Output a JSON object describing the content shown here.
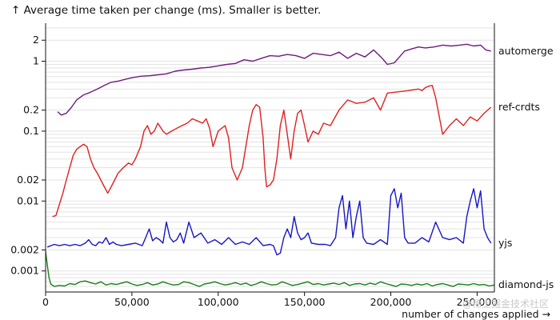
{
  "chart_data": {
    "type": "line",
    "title": "↑ Average time taken per change (ms). Smaller is better.",
    "xlabel": "number of changes applied →",
    "ylabel": "",
    "y_scale": "log",
    "xlim": [
      0,
      260000
    ],
    "ylim": [
      0.0005,
      3.5
    ],
    "grid": true,
    "legend": "inline-right",
    "x_ticks": [
      0,
      50000,
      100000,
      150000,
      200000,
      250000
    ],
    "x_tick_labels": [
      "0",
      "50,000",
      "100,000",
      "150,000",
      "200,000",
      "250,000"
    ],
    "y_ticks": [
      0.001,
      0.002,
      0.01,
      0.02,
      0.1,
      0.2,
      1,
      2
    ],
    "y_tick_labels": [
      "0.001",
      "0.002",
      "0.01",
      "0.02",
      "0.1",
      "0.2",
      "1",
      "2"
    ],
    "series": [
      {
        "name": "automerge",
        "color": "#6e1a7e",
        "x": [
          7000,
          9000,
          12000,
          15000,
          18000,
          22000,
          26000,
          30000,
          34000,
          38000,
          42000,
          46000,
          50000,
          55000,
          60000,
          65000,
          70000,
          75000,
          80000,
          85000,
          90000,
          95000,
          100000,
          105000,
          110000,
          115000,
          120000,
          125000,
          130000,
          135000,
          140000,
          145000,
          150000,
          155000,
          160000,
          165000,
          170000,
          175000,
          180000,
          185000,
          190000,
          195000,
          198000,
          202000,
          205000,
          208000,
          212000,
          216000,
          220000,
          225000,
          230000,
          235000,
          240000,
          244000,
          248000,
          252000,
          255000,
          258000
        ],
        "values": [
          0.19,
          0.17,
          0.18,
          0.22,
          0.28,
          0.33,
          0.36,
          0.4,
          0.45,
          0.5,
          0.52,
          0.55,
          0.58,
          0.61,
          0.62,
          0.64,
          0.66,
          0.72,
          0.75,
          0.77,
          0.8,
          0.82,
          0.86,
          0.9,
          0.93,
          1.05,
          1.0,
          1.1,
          1.2,
          1.18,
          1.25,
          1.2,
          1.1,
          1.3,
          1.25,
          1.2,
          1.35,
          1.1,
          1.3,
          1.15,
          1.45,
          1.1,
          0.9,
          0.95,
          1.15,
          1.4,
          1.5,
          1.6,
          1.55,
          1.6,
          1.7,
          1.65,
          1.7,
          1.75,
          1.65,
          1.7,
          1.45,
          1.4
        ]
      },
      {
        "name": "ref-crdts",
        "color": "#e02020",
        "x": [
          4000,
          6000,
          8000,
          10000,
          12000,
          14000,
          16000,
          18000,
          20000,
          22000,
          24000,
          26000,
          28000,
          30000,
          32000,
          34000,
          36000,
          38000,
          40000,
          42000,
          45000,
          48000,
          50000,
          52000,
          55000,
          57000,
          59000,
          61000,
          63000,
          65000,
          68000,
          70000,
          73000,
          76000,
          79000,
          82000,
          85000,
          88000,
          91000,
          93000,
          95000,
          97000,
          100000,
          102000,
          104000,
          106000,
          108000,
          111000,
          114000,
          116000,
          118000,
          120000,
          122000,
          124000,
          126000,
          127000,
          128000,
          130000,
          132000,
          134000,
          136000,
          138000,
          140000,
          142000,
          144000,
          146000,
          148000,
          150000,
          152000,
          155000,
          158000,
          161000,
          165000,
          170000,
          175000,
          180000,
          185000,
          190000,
          194000,
          198000,
          202000,
          206000,
          210000,
          213000,
          216000,
          218000,
          220000,
          222000,
          224000,
          226000,
          230000,
          234000,
          238000,
          242000,
          246000,
          250000,
          254000,
          258000
        ],
        "values": [
          0.006,
          0.0062,
          0.009,
          0.013,
          0.02,
          0.03,
          0.045,
          0.055,
          0.06,
          0.065,
          0.06,
          0.04,
          0.03,
          0.025,
          0.02,
          0.016,
          0.013,
          0.016,
          0.02,
          0.025,
          0.03,
          0.035,
          0.033,
          0.04,
          0.06,
          0.1,
          0.12,
          0.09,
          0.1,
          0.13,
          0.1,
          0.09,
          0.1,
          0.11,
          0.12,
          0.13,
          0.15,
          0.14,
          0.13,
          0.15,
          0.11,
          0.06,
          0.1,
          0.11,
          0.12,
          0.08,
          0.03,
          0.02,
          0.03,
          0.06,
          0.12,
          0.2,
          0.24,
          0.22,
          0.08,
          0.03,
          0.016,
          0.017,
          0.02,
          0.04,
          0.12,
          0.2,
          0.09,
          0.04,
          0.1,
          0.18,
          0.2,
          0.12,
          0.07,
          0.1,
          0.09,
          0.13,
          0.12,
          0.2,
          0.28,
          0.25,
          0.26,
          0.3,
          0.2,
          0.35,
          0.36,
          0.37,
          0.38,
          0.39,
          0.4,
          0.38,
          0.42,
          0.44,
          0.45,
          0.3,
          0.09,
          0.12,
          0.15,
          0.12,
          0.16,
          0.14,
          0.18,
          0.22
        ]
      },
      {
        "name": "yjs",
        "color": "#1717c4",
        "x": [
          1000,
          3000,
          5000,
          8000,
          11000,
          14000,
          17000,
          20000,
          23000,
          25000,
          27000,
          29000,
          31000,
          33000,
          35000,
          37000,
          39000,
          41000,
          44000,
          48000,
          52000,
          56000,
          58000,
          60000,
          62000,
          64000,
          66000,
          68000,
          70000,
          72000,
          74000,
          76000,
          78000,
          80000,
          83000,
          86000,
          90000,
          94000,
          98000,
          102000,
          106000,
          110000,
          114000,
          118000,
          122000,
          126000,
          130000,
          132000,
          134000,
          136000,
          138000,
          140000,
          142000,
          144000,
          146000,
          148000,
          150000,
          152000,
          154000,
          158000,
          162000,
          165000,
          168000,
          170000,
          172000,
          174000,
          176000,
          178000,
          180000,
          182000,
          184000,
          186000,
          190000,
          194000,
          198000,
          200000,
          202000,
          204000,
          206000,
          208000,
          210000,
          214000,
          218000,
          222000,
          226000,
          230000,
          234000,
          238000,
          242000,
          244000,
          246000,
          248000,
          250000,
          252000,
          254000,
          256000,
          258000
        ],
        "values": [
          0.0022,
          0.0023,
          0.0024,
          0.0023,
          0.0024,
          0.0023,
          0.0024,
          0.0023,
          0.0025,
          0.0028,
          0.0024,
          0.0023,
          0.0026,
          0.0025,
          0.003,
          0.0024,
          0.0026,
          0.0024,
          0.0023,
          0.0024,
          0.0025,
          0.0023,
          0.003,
          0.004,
          0.0027,
          0.003,
          0.0028,
          0.0025,
          0.005,
          0.003,
          0.0026,
          0.0028,
          0.0035,
          0.0025,
          0.005,
          0.003,
          0.0035,
          0.0025,
          0.0028,
          0.0024,
          0.003,
          0.0024,
          0.0026,
          0.0024,
          0.003,
          0.0023,
          0.0024,
          0.0023,
          0.0017,
          0.0018,
          0.003,
          0.004,
          0.003,
          0.006,
          0.0035,
          0.0028,
          0.003,
          0.0035,
          0.0025,
          0.0024,
          0.0024,
          0.0023,
          0.003,
          0.008,
          0.012,
          0.004,
          0.01,
          0.003,
          0.006,
          0.01,
          0.003,
          0.0025,
          0.0024,
          0.0028,
          0.0024,
          0.012,
          0.015,
          0.008,
          0.013,
          0.003,
          0.0025,
          0.0025,
          0.003,
          0.0026,
          0.005,
          0.003,
          0.0028,
          0.003,
          0.0025,
          0.006,
          0.01,
          0.015,
          0.008,
          0.014,
          0.004,
          0.003,
          0.0025
        ]
      },
      {
        "name": "diamond-js",
        "color": "#1a7d1a",
        "x": [
          0,
          1000,
          2000,
          3000,
          5000,
          8000,
          11000,
          14000,
          17000,
          20000,
          23000,
          26000,
          29000,
          32000,
          35000,
          38000,
          41000,
          44000,
          47000,
          50000,
          53000,
          56000,
          59000,
          62000,
          65000,
          68000,
          71000,
          74000,
          77000,
          80000,
          83000,
          86000,
          89000,
          92000,
          95000,
          98000,
          101000,
          104000,
          107000,
          110000,
          113000,
          116000,
          119000,
          122000,
          125000,
          128000,
          131000,
          134000,
          137000,
          140000,
          143000,
          146000,
          149000,
          152000,
          155000,
          158000,
          161000,
          164000,
          167000,
          170000,
          173000,
          176000,
          179000,
          182000,
          185000,
          188000,
          191000,
          194000,
          197000,
          200000,
          203000,
          206000,
          209000,
          212000,
          215000,
          218000,
          221000,
          224000,
          227000,
          230000,
          233000,
          236000,
          239000,
          242000,
          245000,
          248000,
          251000,
          254000,
          257000,
          260000
        ],
        "values": [
          0.0019,
          0.0012,
          0.0008,
          0.00065,
          0.0006,
          0.00062,
          0.00061,
          0.00066,
          0.00064,
          0.0007,
          0.00072,
          0.00068,
          0.00065,
          0.0007,
          0.00063,
          0.00066,
          0.00064,
          0.00067,
          0.0007,
          0.00065,
          0.00062,
          0.00064,
          0.00068,
          0.00063,
          0.00065,
          0.0007,
          0.00066,
          0.00063,
          0.00064,
          0.0007,
          0.00068,
          0.00064,
          0.0006,
          0.00065,
          0.00067,
          0.0007,
          0.00066,
          0.00063,
          0.00065,
          0.00068,
          0.00064,
          0.00067,
          0.00062,
          0.00065,
          0.0007,
          0.00066,
          0.00063,
          0.00064,
          0.0007,
          0.00066,
          0.00062,
          0.00064,
          0.00067,
          0.0007,
          0.00064,
          0.00066,
          0.00063,
          0.00065,
          0.00067,
          0.00064,
          0.00068,
          0.00062,
          0.00065,
          0.00066,
          0.00063,
          0.00067,
          0.00064,
          0.0007,
          0.00066,
          0.00063,
          0.0006,
          0.00065,
          0.00064,
          0.00062,
          0.00065,
          0.00063,
          0.00066,
          0.00061,
          0.00064,
          0.00066,
          0.00063,
          0.0006,
          0.00065,
          0.00064,
          0.00063,
          0.00066,
          0.00063,
          0.00064,
          0.00061,
          0.00063
        ]
      }
    ]
  },
  "watermark": "@稀土掘金技术社区"
}
